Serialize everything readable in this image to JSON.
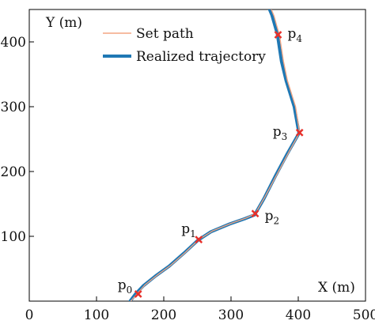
{
  "chart_data": {
    "type": "line",
    "xlabel": "X (m)",
    "ylabel": "Y (m)",
    "xlim": [
      0,
      500
    ],
    "ylim": [
      0,
      450
    ],
    "xticks": [
      0,
      100,
      200,
      300,
      400,
      500
    ],
    "yticks": [
      100,
      200,
      300,
      400
    ],
    "grid": false,
    "legend_position": "top",
    "series": [
      {
        "name": "Set path",
        "color": "#f4a582",
        "x": [
          151,
          160,
          172,
          190,
          210,
          232,
          252,
          272,
          300,
          322,
          336,
          350,
          368,
          386,
          402,
          396,
          384,
          378,
          372,
          368,
          364,
          360,
          356
        ],
        "y": [
          0,
          11,
          25,
          40,
          55,
          75,
          95,
          108,
          120,
          128,
          135,
          160,
          195,
          230,
          260,
          300,
          340,
          370,
          411,
          425,
          440,
          450,
          465
        ]
      },
      {
        "name": "Realized trajectory",
        "color": "#1f78b4",
        "x": [
          150,
          158,
          170,
          188,
          208,
          230,
          251,
          270,
          298,
          320,
          335,
          349,
          366,
          384,
          401,
          394,
          382,
          375,
          369,
          365,
          361,
          357,
          353
        ],
        "y": [
          0,
          11,
          24,
          39,
          54,
          74,
          94,
          107,
          119,
          127,
          133,
          158,
          193,
          228,
          259,
          300,
          340,
          370,
          412,
          426,
          441,
          451,
          466
        ]
      }
    ],
    "waypoints": [
      {
        "label": "p",
        "sub": "0",
        "x": 162,
        "y": 11
      },
      {
        "label": "p",
        "sub": "1",
        "x": 252,
        "y": 95
      },
      {
        "label": "p",
        "sub": "2",
        "x": 336,
        "y": 135
      },
      {
        "label": "p",
        "sub": "3",
        "x": 402,
        "y": 260
      },
      {
        "label": "p",
        "sub": "4",
        "x": 370,
        "y": 411
      }
    ],
    "waypoint_color": "#e8302a"
  }
}
